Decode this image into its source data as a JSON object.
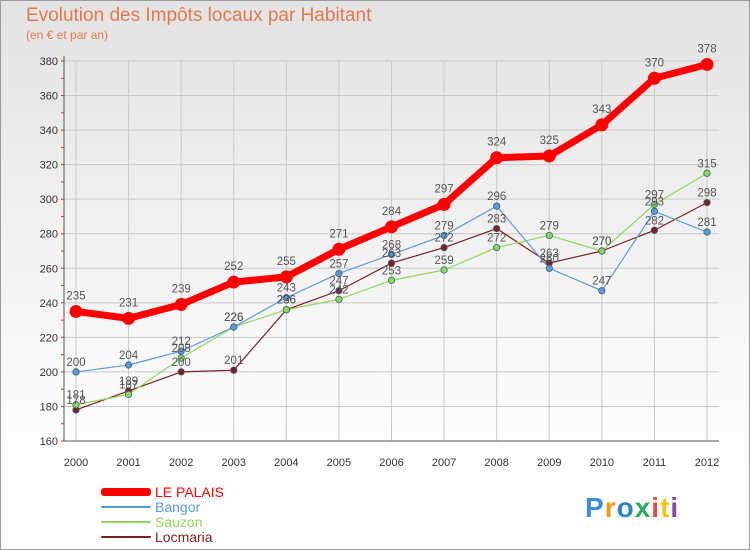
{
  "header": {
    "title": "Evolution des Impôts locaux par Habitant",
    "subtitle": "(en € et par an)"
  },
  "chart_data": {
    "type": "line",
    "title": "Evolution des Impôts locaux par Habitant",
    "subtitle": "(en € et par an)",
    "xlabel": "",
    "ylabel": "",
    "x": [
      "2000",
      "2001",
      "2002",
      "2003",
      "2004",
      "2005",
      "2006",
      "2007",
      "2008",
      "2009",
      "2010",
      "2011",
      "2012"
    ],
    "ylim": [
      160,
      380
    ],
    "yticks": [
      "160",
      "180",
      "200",
      "220",
      "240",
      "260",
      "280",
      "300",
      "320",
      "340",
      "360",
      "380"
    ],
    "grid": true,
    "series": [
      {
        "name": "LE PALAIS",
        "color": "#ff0000",
        "values": [
          235,
          231,
          239,
          252,
          255,
          271,
          284,
          297,
          324,
          325,
          343,
          370,
          378
        ]
      },
      {
        "name": "Bangor",
        "color": "#5b9bd5",
        "values": [
          200,
          204,
          212,
          226,
          243,
          257,
          268,
          279,
          296,
          260,
          247,
          293,
          281
        ]
      },
      {
        "name": "Sauzon",
        "color": "#8ed85a",
        "values": [
          181,
          187,
          208,
          226,
          236,
          242,
          253,
          259,
          272,
          279,
          270,
          297,
          315
        ]
      },
      {
        "name": "Locmaria",
        "color": "#7a2020",
        "values": [
          178,
          189,
          200,
          201,
          236,
          247,
          263,
          272,
          283,
          263,
          270,
          282,
          298
        ]
      }
    ]
  },
  "logo": {
    "letters": [
      {
        "char": "P",
        "color": "#3a8fd8"
      },
      {
        "char": "r",
        "color": "#f39c12"
      },
      {
        "char": "o",
        "color": "#2e86c1"
      },
      {
        "char": "x",
        "color": "#27ae60"
      },
      {
        "char": "i",
        "color": "#e74c3c"
      },
      {
        "char": "t",
        "color": "#f1c40f"
      },
      {
        "char": "i",
        "color": "#8e44ad"
      }
    ]
  }
}
